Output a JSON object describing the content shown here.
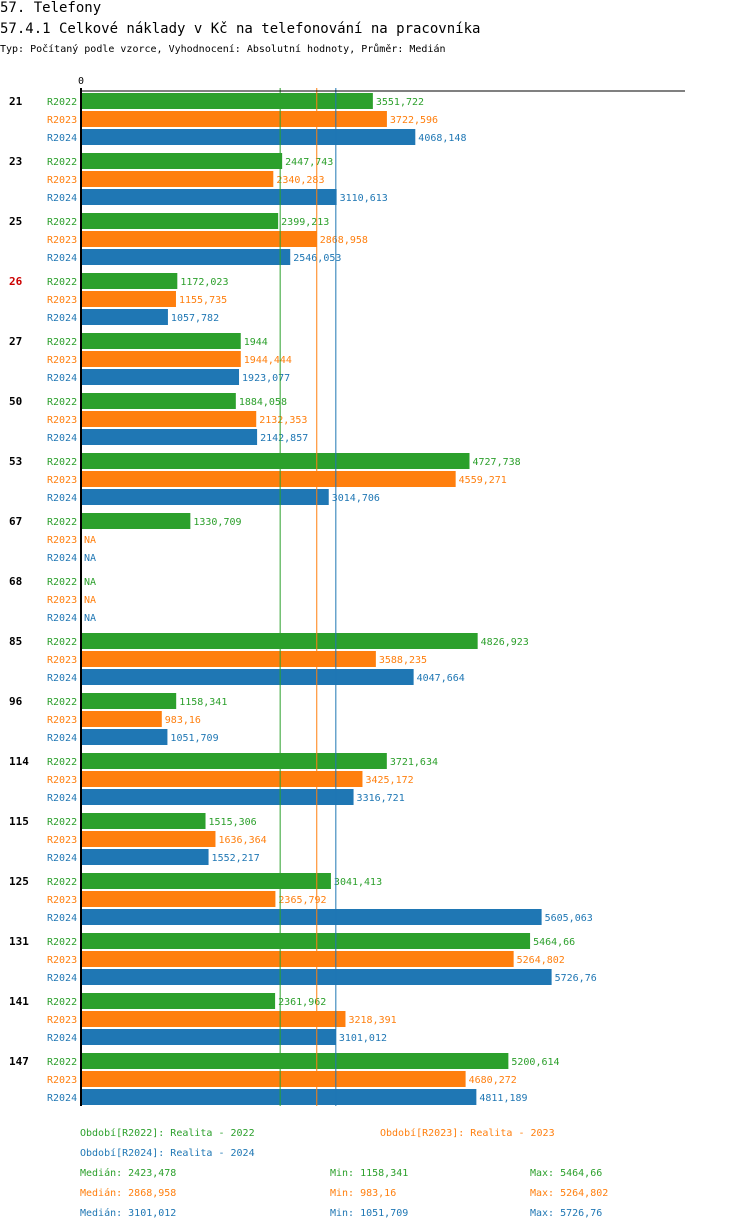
{
  "header": {
    "title": "57. Telefony",
    "subtitle": "57.4.1 Celkové náklady v Kč na telefonování na pracovníka",
    "type_line": "Typ: Počítaný podle vzorce, Vyhodnocení: Absolutní hodnoty, Průměr: Medián"
  },
  "colors": {
    "R2022": "#2ca02c",
    "R2023": "#ff7f0e",
    "R2024": "#1f77b4",
    "highlight": "#cc0000"
  },
  "chart_data": {
    "type": "bar",
    "orientation": "horizontal",
    "title": "57.4.1 Celkové náklady v Kč na telefonování na pracovníka",
    "xlim": [
      0,
      7350
    ],
    "x_tick_labels": [
      "0"
    ],
    "categories": [
      "21",
      "23",
      "25",
      "26",
      "27",
      "50",
      "53",
      "67",
      "68",
      "85",
      "96",
      "114",
      "115",
      "125",
      "131",
      "141",
      "147"
    ],
    "highlight_category": "26",
    "series": [
      {
        "name": "R2022",
        "values": [
          3551.722,
          2447.743,
          2399.213,
          1172.023,
          1944,
          1884.058,
          4727.738,
          1330.709,
          null,
          4826.923,
          1158.341,
          3721.634,
          1515.306,
          3041.413,
          5464.66,
          2361.962,
          5200.614
        ],
        "labels": [
          "3551,722",
          "2447,743",
          "2399,213",
          "1172,023",
          "1944",
          "1884,058",
          "4727,738",
          "1330,709",
          "NA",
          "4826,923",
          "1158,341",
          "3721,634",
          "1515,306",
          "3041,413",
          "5464,66",
          "2361,962",
          "5200,614"
        ]
      },
      {
        "name": "R2023",
        "values": [
          3722.596,
          2340.283,
          2868.958,
          1155.735,
          1944.444,
          2132.353,
          4559.271,
          null,
          null,
          3588.235,
          983.16,
          3425.172,
          1636.364,
          2365.792,
          5264.802,
          3218.391,
          4680.272
        ],
        "labels": [
          "3722,596",
          "2340,283",
          "2868,958",
          "1155,735",
          "1944,444",
          "2132,353",
          "4559,271",
          "NA",
          "NA",
          "3588,235",
          "983,16",
          "3425,172",
          "1636,364",
          "2365,792",
          "5264,802",
          "3218,391",
          "4680,272"
        ]
      },
      {
        "name": "R2024",
        "values": [
          4068.148,
          3110.613,
          2546.053,
          1057.782,
          1923.077,
          2142.857,
          3014.706,
          null,
          null,
          4047.664,
          1051.709,
          3316.721,
          1552.217,
          5605.063,
          5726.76,
          3101.012,
          4811.189
        ],
        "labels": [
          "4068,148",
          "3110,613",
          "2546,053",
          "1057,782",
          "1923,077",
          "2142,857",
          "3014,706",
          "NA",
          "NA",
          "4047,664",
          "1051,709",
          "3316,721",
          "1552,217",
          "5605,063",
          "5726,76",
          "3101,012",
          "4811,189"
        ]
      }
    ],
    "median_lines": [
      {
        "series": "R2022",
        "value": 2423.478
      },
      {
        "series": "R2023",
        "value": 2868.958
      },
      {
        "series": "R2024",
        "value": 3101.012
      }
    ]
  },
  "legend": {
    "periods": [
      "Období[R2022]: Realita - 2022",
      "Období[R2023]: Realita - 2023",
      "Období[R2024]: Realita - 2024"
    ],
    "stats": [
      {
        "median": "Medián: 2423,478",
        "min": "Min: 1158,341",
        "max": "Max: 5464,66"
      },
      {
        "median": "Medián: 2868,958",
        "min": "Min: 983,16",
        "max": "Max: 5264,802"
      },
      {
        "median": "Medián: 3101,012",
        "min": "Min: 1051,709",
        "max": "Max: 5726,76"
      }
    ]
  }
}
